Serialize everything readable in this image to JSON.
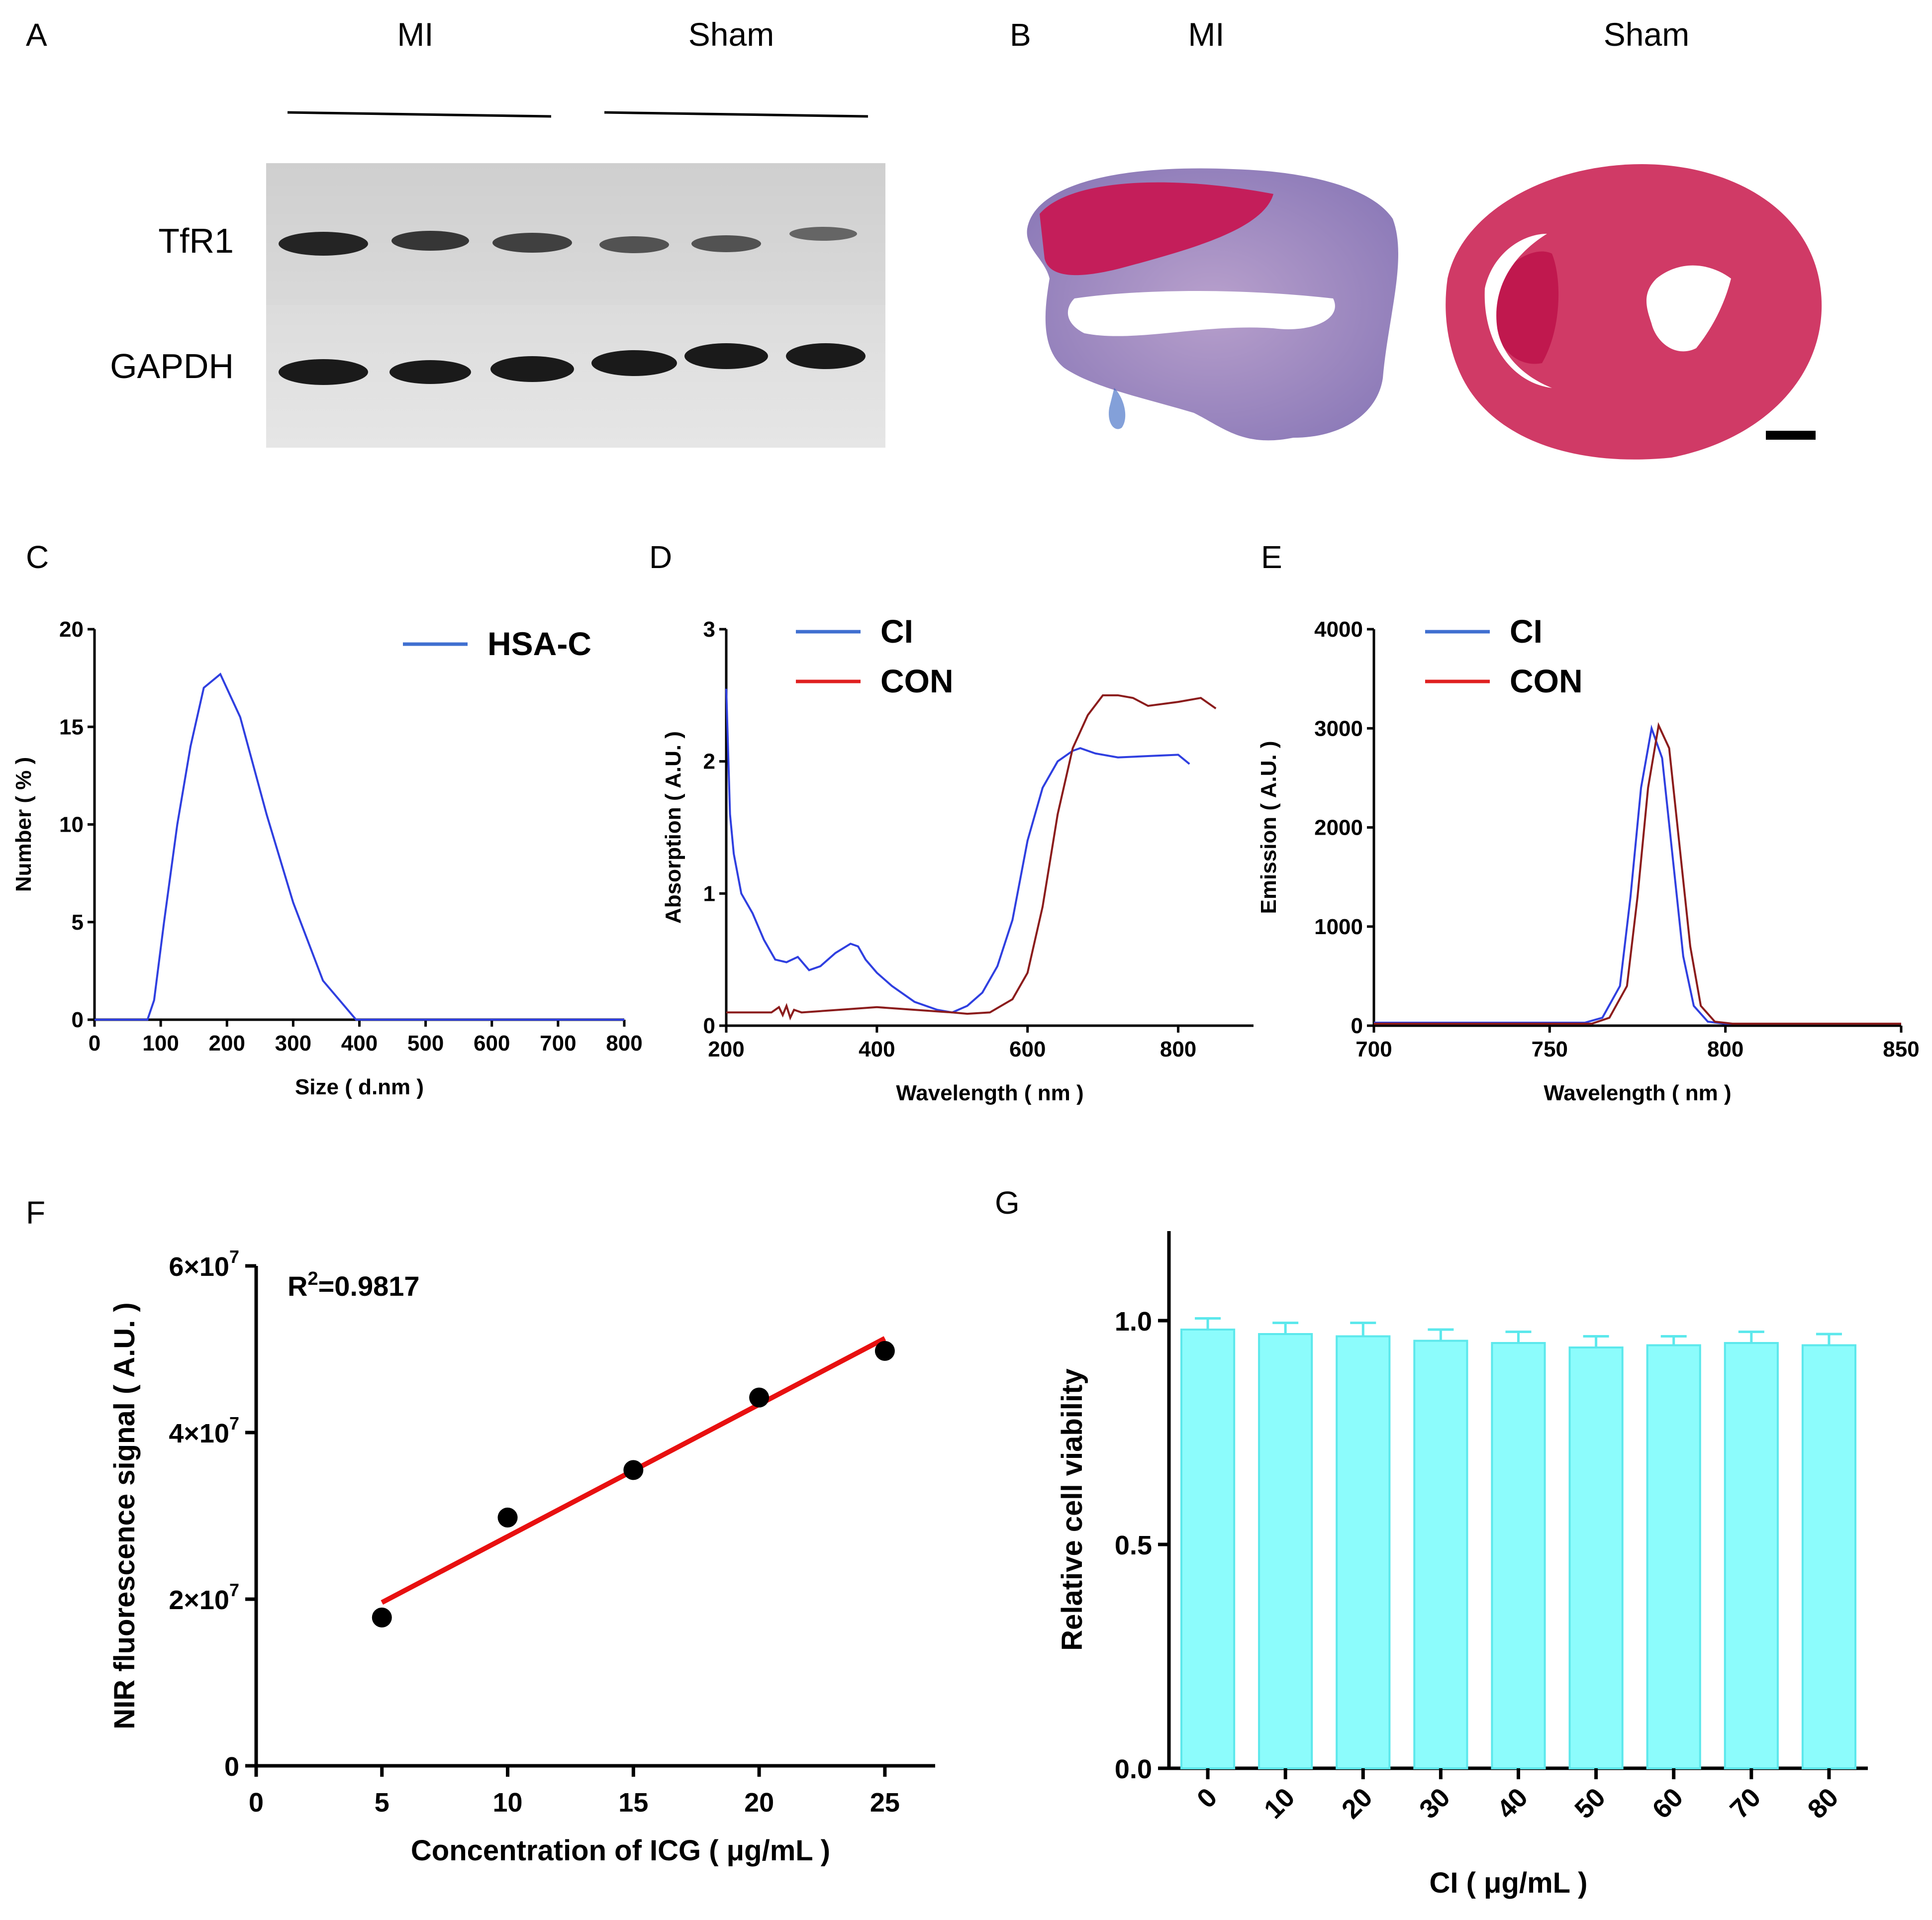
{
  "panels": {
    "A": {
      "label": "A",
      "group1": "MI",
      "group2": "Sham",
      "rows": [
        "TfR1",
        "GAPDH"
      ]
    },
    "B": {
      "label": "B",
      "group1": "MI",
      "group2": "Sham"
    },
    "C": {
      "label": "C"
    },
    "D": {
      "label": "D"
    },
    "E": {
      "label": "E"
    },
    "F": {
      "label": "F"
    },
    "G": {
      "label": "G"
    }
  },
  "colors": {
    "blue": "#2f3fe0",
    "red": "#8b1c1c",
    "legend_blue": "#3f6fd0",
    "legend_red": "#e02020",
    "fit": "#e81010",
    "bar": "#8cfcfc",
    "bar_edge": "#5ce8ec"
  },
  "chart_data": [
    {
      "panel": "C",
      "type": "line",
      "xlabel": "Size ( d.nm )",
      "ylabel": "Number ( % )",
      "xlim": [
        0,
        800
      ],
      "ylim": [
        0,
        20
      ],
      "xticks": [
        "0",
        "100",
        "200",
        "300",
        "400",
        "500",
        "600",
        "700",
        "800"
      ],
      "yticks": [
        "0",
        "5",
        "10",
        "15",
        "20"
      ],
      "series": [
        {
          "name": "HSA-C",
          "x": [
            0,
            80,
            90,
            105,
            125,
            145,
            165,
            190,
            220,
            260,
            300,
            345,
            395,
            450,
            800
          ],
          "y": [
            0,
            0,
            1,
            5,
            10,
            14,
            17,
            17.7,
            15.5,
            10.5,
            6,
            2,
            0,
            0,
            0
          ]
        }
      ]
    },
    {
      "panel": "D",
      "type": "line",
      "xlabel": "Wavelength ( nm )",
      "ylabel": "Absorption ( A.U. )",
      "xlim": [
        200,
        900
      ],
      "ylim": [
        0,
        3
      ],
      "xticks": [
        "200",
        "400",
        "600",
        "800"
      ],
      "yticks": [
        "0",
        "1",
        "2",
        "3"
      ],
      "series": [
        {
          "name": "CI",
          "x": [
            200,
            205,
            210,
            220,
            235,
            250,
            265,
            280,
            295,
            310,
            325,
            345,
            365,
            375,
            385,
            400,
            420,
            450,
            480,
            500,
            520,
            540,
            560,
            580,
            600,
            620,
            640,
            660,
            670,
            690,
            720,
            760,
            800,
            815
          ],
          "y": [
            2.55,
            1.6,
            1.3,
            1.0,
            0.85,
            0.65,
            0.5,
            0.48,
            0.52,
            0.42,
            0.45,
            0.55,
            0.62,
            0.6,
            0.5,
            0.4,
            0.3,
            0.18,
            0.12,
            0.1,
            0.15,
            0.25,
            0.45,
            0.8,
            1.4,
            1.8,
            2.0,
            2.08,
            2.1,
            2.06,
            2.03,
            2.04,
            2.05,
            1.98
          ]
        },
        {
          "name": "CON",
          "x": [
            200,
            240,
            260,
            270,
            275,
            280,
            285,
            290,
            300,
            350,
            400,
            450,
            500,
            520,
            550,
            580,
            600,
            620,
            640,
            660,
            680,
            700,
            720,
            740,
            760,
            800,
            830,
            850
          ],
          "y": [
            0.1,
            0.1,
            0.1,
            0.14,
            0.08,
            0.15,
            0.06,
            0.12,
            0.1,
            0.12,
            0.14,
            0.12,
            0.1,
            0.09,
            0.1,
            0.2,
            0.4,
            0.9,
            1.6,
            2.1,
            2.35,
            2.5,
            2.5,
            2.48,
            2.42,
            2.45,
            2.48,
            2.4
          ]
        }
      ]
    },
    {
      "panel": "E",
      "type": "line",
      "xlabel": "Wavelength ( nm )",
      "ylabel": "Emission ( A.U. )",
      "xlim": [
        700,
        850
      ],
      "ylim": [
        0,
        4000
      ],
      "xticks": [
        "700",
        "750",
        "800",
        "850"
      ],
      "yticks": [
        "0",
        "1000",
        "2000",
        "3000",
        "4000"
      ],
      "series": [
        {
          "name": "CI",
          "x": [
            700,
            760,
            765,
            770,
            773,
            776,
            779,
            782,
            785,
            788,
            791,
            795,
            800,
            850
          ],
          "y": [
            30,
            30,
            80,
            400,
            1300,
            2400,
            3000,
            2700,
            1700,
            700,
            200,
            40,
            20,
            20
          ]
        },
        {
          "name": "CON",
          "x": [
            700,
            762,
            767,
            772,
            775,
            778,
            781,
            784,
            787,
            790,
            793,
            797,
            802,
            850
          ],
          "y": [
            20,
            20,
            80,
            400,
            1300,
            2400,
            3030,
            2800,
            1800,
            800,
            200,
            40,
            20,
            20
          ]
        }
      ]
    },
    {
      "panel": "F",
      "type": "scatter",
      "xlabel": "Concentration of ICG ( μg/mL )",
      "ylabel": "NIR fluorescence signal ( A.U. )",
      "xlim": [
        0,
        27
      ],
      "ylim": [
        0,
        60000000
      ],
      "xticks": [
        "0",
        "5",
        "10",
        "15",
        "20",
        "25"
      ],
      "yticks": [
        "0",
        "2×10",
        "4×10",
        "6×10"
      ],
      "ytick_exp": "7",
      "annotation": {
        "text": "R",
        "sup": "2",
        "value": "=0.9817"
      },
      "points": {
        "x": [
          5,
          10,
          15,
          20,
          25
        ],
        "y": [
          17800000,
          29800000,
          35500000,
          44200000,
          49800000
        ]
      },
      "fit": {
        "x": [
          5,
          25
        ],
        "y": [
          19600000,
          51300000
        ]
      }
    },
    {
      "panel": "G",
      "type": "bar",
      "xlabel": "CI ( μg/mL )",
      "ylabel": "Relative cell viability",
      "ylim": [
        0,
        1.2
      ],
      "yticks": [
        "0.0",
        "0.5",
        "1.0"
      ],
      "categories": [
        "0",
        "10",
        "20",
        "30",
        "40",
        "50",
        "60",
        "70",
        "80"
      ],
      "values": [
        0.98,
        0.97,
        0.965,
        0.955,
        0.95,
        0.94,
        0.945,
        0.95,
        0.945
      ],
      "errors": [
        0.025,
        0.025,
        0.03,
        0.025,
        0.025,
        0.025,
        0.02,
        0.025,
        0.025
      ]
    }
  ]
}
